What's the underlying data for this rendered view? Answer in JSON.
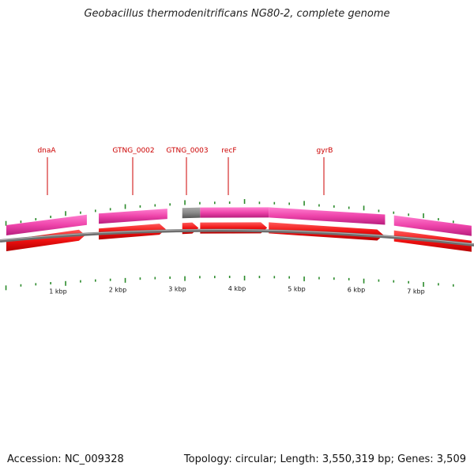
{
  "title": "Geobacillus thermodenitrificans NG80-2, complete genome",
  "footer": {
    "accession": "Accession: NC_009328",
    "topology": "Topology: circular; Length: 3,550,319 bp; Genes: 3,509"
  },
  "gene_labels": [
    "dnaA",
    "GTNG_0002",
    "GTNG_0003",
    "recF",
    "gyrB"
  ],
  "scale_labels": [
    "1 kbp",
    "2 kbp",
    "3 kbp",
    "4 kbp",
    "5 kbp",
    "6 kbp",
    "7 kbp"
  ],
  "colors": {
    "gene_track": "#ee44aa",
    "cds_arrow": "#ee1111",
    "backbone": "#777777",
    "tick": "#2a8a2a",
    "gene_label": "#cc0000",
    "pseudo_gene": "#777777"
  },
  "chart_data": {
    "type": "genome-map",
    "topology": "circular",
    "genome_length_bp": 3550319,
    "view_range_kbp": [
      0,
      7.8
    ],
    "genes": [
      {
        "name": "dnaA",
        "start_kbp": 0.0,
        "end_kbp": 1.35,
        "strand": "+",
        "labeled": true
      },
      {
        "name": "GTNG_0002",
        "start_kbp": 1.55,
        "end_kbp": 2.7,
        "strand": "+",
        "labeled": true
      },
      {
        "name": "GTNG_0003",
        "start_kbp": 2.95,
        "end_kbp": 3.25,
        "strand": "+",
        "labeled": true
      },
      {
        "name": "recF",
        "start_kbp": 3.25,
        "end_kbp": 4.4,
        "strand": "+",
        "labeled": true
      },
      {
        "name": "gyrB",
        "start_kbp": 4.4,
        "end_kbp": 6.35,
        "strand": "+",
        "labeled": true
      },
      {
        "name": "",
        "start_kbp": 6.5,
        "end_kbp": 7.8,
        "strand": "+",
        "labeled": false
      }
    ],
    "scale_ticks_kbp": [
      1,
      2,
      3,
      4,
      5,
      6,
      7
    ]
  }
}
